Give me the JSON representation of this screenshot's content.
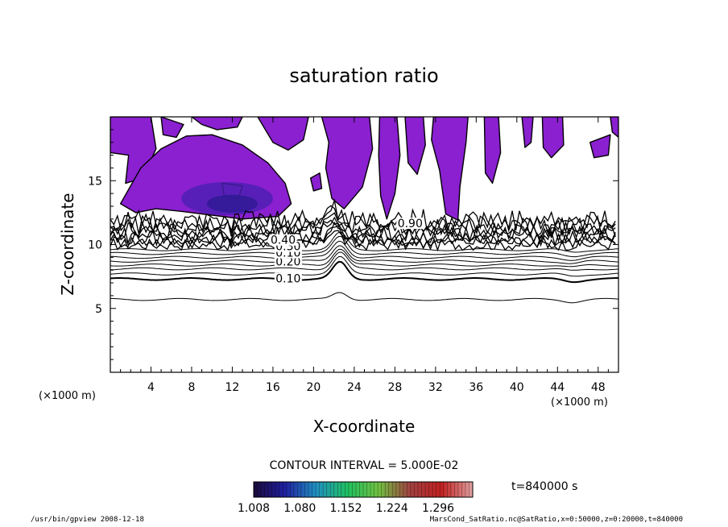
{
  "chart_data": {
    "type": "contour",
    "title": "saturation ratio",
    "xlabel": "X-coordinate",
    "ylabel": "Z-coordinate",
    "x_unit": "(×1000 m)",
    "x_unit_right": "(×1000 m)",
    "xlim": [
      0,
      50
    ],
    "ylim": [
      0,
      20
    ],
    "x_ticks": [
      4,
      8,
      12,
      16,
      20,
      24,
      28,
      32,
      36,
      40,
      44,
      48
    ],
    "y_ticks": [
      5,
      10,
      15
    ],
    "contour_interval_text": "CONTOUR INTERVAL = 5.000E-02",
    "time_text": "t=840000 s",
    "contour_labels": [
      {
        "text": "0.10",
        "x": 17.5,
        "z": 7.3
      },
      {
        "text": "0.20",
        "x": 17.5,
        "z": 8.6
      },
      {
        "text": "0.10",
        "x": 17.5,
        "z": 9.3
      },
      {
        "text": "0.30",
        "x": 17.5,
        "z": 9.8
      },
      {
        "text": "0.40",
        "x": 17.0,
        "z": 10.3
      },
      {
        "text": "0.90",
        "x": 29.5,
        "z": 11.6
      }
    ],
    "colorbar": {
      "ticks": [
        "1.008",
        "1.080",
        "1.152",
        "1.224",
        "1.296"
      ],
      "min": 1.008,
      "max": 1.35,
      "colors": [
        "#1a0a3a",
        "#2020a0",
        "#2090c0",
        "#20c060",
        "#70c040",
        "#a04040",
        "#c02020",
        "#e0a0a0"
      ]
    },
    "supersaturated_color": "#8a20d0",
    "footer_left": "/usr/bin/gpview   2008-12-18",
    "footer_right": "MarsCond_SatRatio.nc@SatRatio,x=0:50000,z=0:20000,t=840000"
  }
}
